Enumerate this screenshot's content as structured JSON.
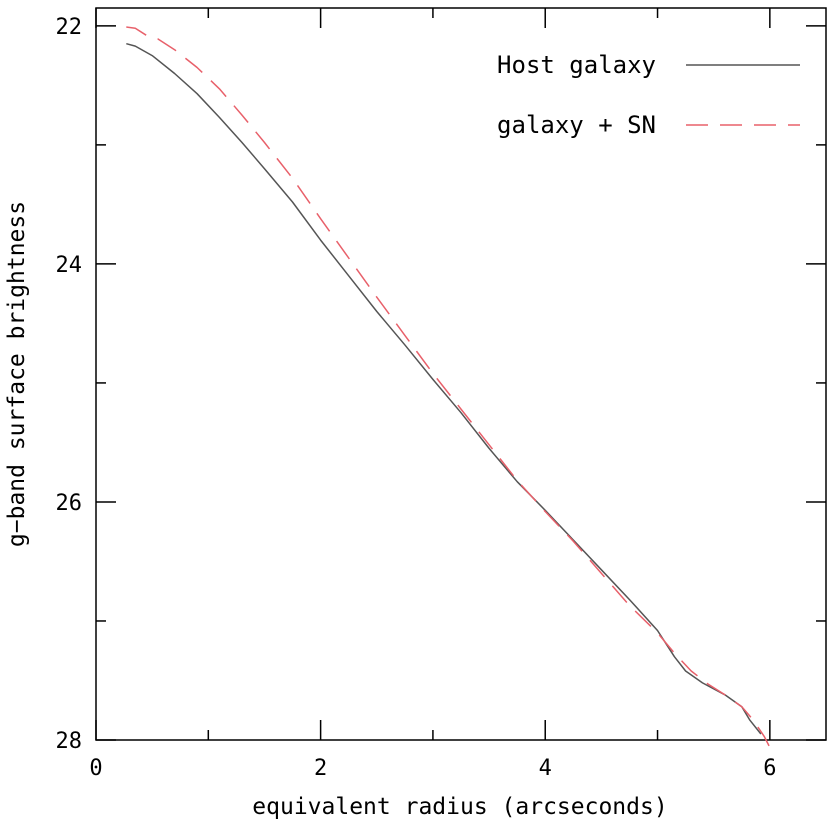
{
  "chart_data": {
    "type": "line",
    "title": "",
    "xlabel": "equivalent radius (arcseconds)",
    "ylabel": "g−band surface brightness",
    "xlim": [
      0,
      6.5
    ],
    "ylim": [
      28,
      21.85
    ],
    "y_inverted": true,
    "x_major_ticks": [
      0,
      2,
      4,
      6
    ],
    "x_tick_labels": [
      "0",
      "2",
      "4",
      "6"
    ],
    "x_minor_ticks": [
      1,
      3,
      5
    ],
    "y_major_ticks": [
      22,
      24,
      26,
      28
    ],
    "y_tick_labels": [
      "22",
      "24",
      "26",
      "28"
    ],
    "y_minor_ticks": [
      23,
      25,
      27
    ],
    "grid": false,
    "legend_position": "top-right",
    "series": [
      {
        "name": "Host galaxy",
        "style": "solid",
        "color": "#555555",
        "x": [
          0.27,
          0.35,
          0.5,
          0.7,
          0.9,
          1.1,
          1.3,
          1.5,
          1.75,
          2.0,
          2.25,
          2.5,
          2.75,
          3.0,
          3.25,
          3.5,
          3.75,
          4.0,
          4.25,
          4.5,
          4.75,
          5.0,
          5.15,
          5.25,
          5.4,
          5.6,
          5.75,
          5.82,
          5.92
        ],
        "y": [
          22.15,
          22.17,
          22.25,
          22.4,
          22.57,
          22.77,
          22.98,
          23.2,
          23.48,
          23.8,
          24.1,
          24.4,
          24.68,
          24.97,
          25.25,
          25.55,
          25.83,
          26.07,
          26.32,
          26.57,
          26.82,
          27.08,
          27.3,
          27.42,
          27.52,
          27.62,
          27.72,
          27.83,
          27.95
        ]
      },
      {
        "name": "galaxy + SN",
        "style": "dashed",
        "color": "#e8606a",
        "x": [
          0.27,
          0.35,
          0.45,
          0.55,
          0.7,
          0.9,
          1.1,
          1.3,
          1.5,
          1.75,
          2.0,
          2.25,
          2.5,
          2.75,
          3.0,
          3.25,
          3.5,
          3.75,
          4.0,
          4.25,
          4.5,
          4.75,
          5.0,
          5.15,
          5.3,
          5.45,
          5.6,
          5.75,
          5.85,
          5.95,
          6.02
        ],
        "y": [
          22.01,
          22.02,
          22.08,
          22.11,
          22.2,
          22.35,
          22.53,
          22.75,
          22.98,
          23.28,
          23.62,
          23.95,
          24.28,
          24.6,
          24.92,
          25.22,
          25.52,
          25.82,
          26.08,
          26.33,
          26.6,
          26.87,
          27.1,
          27.27,
          27.42,
          27.53,
          27.62,
          27.72,
          27.83,
          27.97,
          28.1
        ]
      }
    ]
  }
}
